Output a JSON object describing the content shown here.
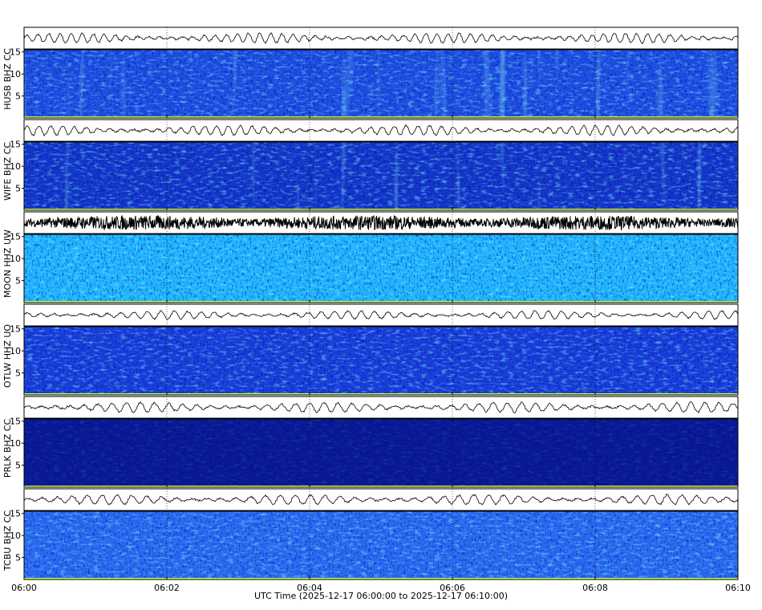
{
  "chart_data": {
    "type": "spectrogram",
    "xlabel": "UTC Time (2025-12-17 06:00:00 to 2025-12-17 06:10:00)",
    "xlim": [
      0,
      10
    ],
    "xticks": [
      {
        "value": 0,
        "label": "06:00"
      },
      {
        "value": 2,
        "label": "06:02"
      },
      {
        "value": 4,
        "label": "06:04"
      },
      {
        "value": 6,
        "label": "06:06"
      },
      {
        "value": 8,
        "label": "06:08"
      },
      {
        "value": 10,
        "label": "06:10"
      }
    ],
    "ylim": [
      0,
      15.5
    ],
    "yticks": [
      5,
      10,
      15
    ],
    "grid": true,
    "panels": [
      {
        "name": "HUSB BHZ CC",
        "color": "#1f4fe0"
      },
      {
        "name": "WIFE BHZ CC",
        "color": "#1537c8"
      },
      {
        "name": "MOON HHZ UW",
        "color": "#22b8ff"
      },
      {
        "name": "OTLW HHZ UO",
        "color": "#1a3fd8"
      },
      {
        "name": "PRLK BHZ CC",
        "color": "#0a1a90"
      },
      {
        "name": "TCBU BHZ CC",
        "color": "#2a6cf0"
      }
    ]
  }
}
